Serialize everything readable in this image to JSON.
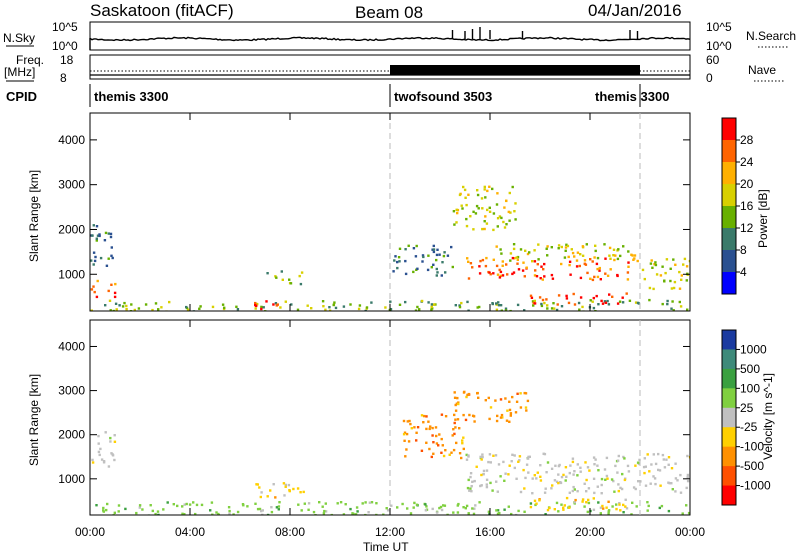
{
  "header": {
    "station": "Saskatoon (fitACF)",
    "beam": "Beam 08",
    "date": "04/Jan/2016"
  },
  "noise_panel": {
    "left_label": "N.Sky",
    "left_ticks": [
      "10^5",
      "10^0"
    ],
    "right_ticks": [
      "10^5",
      "10^0"
    ],
    "right_label": "N.Search"
  },
  "freq_panel": {
    "left_label_1": "Freq.",
    "left_label_2": "[MHz]",
    "left_ticks": [
      "18",
      "8"
    ],
    "right_ticks": [
      "60",
      "0"
    ],
    "right_label": "Nave"
  },
  "cpid": {
    "label": "CPID",
    "segments": [
      {
        "name": "themis 3300",
        "start_h": 0,
        "end_h": 12
      },
      {
        "name": "twofsound 3503",
        "start_h": 12,
        "end_h": 22
      },
      {
        "name": "themis 3300",
        "start_h": 22,
        "end_h": 24
      }
    ]
  },
  "chart_data": [
    {
      "type": "heatmap",
      "quantity": "Power",
      "ylabel": "Slant Range [km]",
      "xlabel": "Time UT",
      "colorbar_label": "Power [dB]",
      "xlim": [
        0,
        24
      ],
      "ylim": [
        180,
        4600
      ],
      "x_ticks": [
        "00:00",
        "04:00",
        "08:00",
        "12:00",
        "16:00",
        "20:00",
        "00:00"
      ],
      "y_ticks": [
        1000,
        2000,
        3000,
        4000
      ],
      "colorbar_ticks": [
        "28",
        "24",
        "20",
        "16",
        "12",
        "8",
        "4"
      ],
      "colorbar_colors": [
        "#ff0000",
        "#ff6400",
        "#ffb000",
        "#d8d000",
        "#68b000",
        "#3a7a6a",
        "#2a5090",
        "#0000ff"
      ],
      "regions": [
        {
          "t0": 0.0,
          "t1": 1.0,
          "r0": 1200,
          "r1": 2200,
          "level": 2
        },
        {
          "t0": 0.0,
          "t1": 1.0,
          "r0": 500,
          "r1": 900,
          "level": 6
        },
        {
          "t0": 0.0,
          "t1": 24.0,
          "r0": 180,
          "r1": 450,
          "level": 3
        },
        {
          "t0": 6.5,
          "t1": 8.0,
          "r0": 250,
          "r1": 450,
          "level": 7
        },
        {
          "t0": 7.0,
          "t1": 8.5,
          "r0": 800,
          "r1": 1100,
          "level": 3
        },
        {
          "t0": 12.0,
          "t1": 14.5,
          "r0": 1000,
          "r1": 1700,
          "level": 2
        },
        {
          "t0": 14.5,
          "t1": 17.0,
          "r0": 2000,
          "r1": 3000,
          "level": 4
        },
        {
          "t0": 15.0,
          "t1": 22.0,
          "r0": 900,
          "r1": 1400,
          "level": 6
        },
        {
          "t0": 16.0,
          "t1": 22.0,
          "r0": 1300,
          "r1": 1700,
          "level": 4
        },
        {
          "t0": 17.5,
          "t1": 21.5,
          "r0": 350,
          "r1": 600,
          "level": 7
        },
        {
          "t0": 22.0,
          "t1": 24.0,
          "r0": 700,
          "r1": 1400,
          "level": 4
        }
      ]
    },
    {
      "type": "heatmap",
      "quantity": "Velocity",
      "ylabel": "Slant Range [km]",
      "xlabel": "Time UT",
      "colorbar_label": "Velocity [m s^-1]",
      "xlim": [
        0,
        24
      ],
      "ylim": [
        180,
        4600
      ],
      "x_ticks": [
        "00:00",
        "04:00",
        "08:00",
        "12:00",
        "16:00",
        "20:00",
        "00:00"
      ],
      "y_ticks": [
        1000,
        2000,
        3000,
        4000
      ],
      "colorbar_ticks": [
        "1000",
        "500",
        "100",
        "25",
        "-25",
        "-100",
        "-500",
        "-1000"
      ],
      "colorbar_colors": [
        "#1a3aa0",
        "#3e8a7a",
        "#3aa040",
        "#80d040",
        "#c0c0c0",
        "#ffd000",
        "#ff9000",
        "#ff5000",
        "#ff0000"
      ],
      "regions": [
        {
          "t0": 0.0,
          "t1": 1.0,
          "r0": 1300,
          "r1": 2100,
          "value": "-25..25"
        },
        {
          "t0": 0.0,
          "t1": 24.0,
          "r0": 180,
          "r1": 500,
          "value": "25..100"
        },
        {
          "t0": 6.5,
          "t1": 8.5,
          "r0": 600,
          "r1": 1000,
          "value": "-100..-25"
        },
        {
          "t0": 12.5,
          "t1": 15.0,
          "r0": 1500,
          "r1": 2500,
          "value": "-500..-100"
        },
        {
          "t0": 14.5,
          "t1": 17.5,
          "r0": 2300,
          "r1": 3000,
          "value": "-500..-100"
        },
        {
          "t0": 15.0,
          "t1": 24.0,
          "r0": 700,
          "r1": 1600,
          "value": "-25..25"
        },
        {
          "t0": 17.5,
          "t1": 21.5,
          "r0": 300,
          "r1": 600,
          "value": "-100..-25"
        }
      ]
    }
  ]
}
